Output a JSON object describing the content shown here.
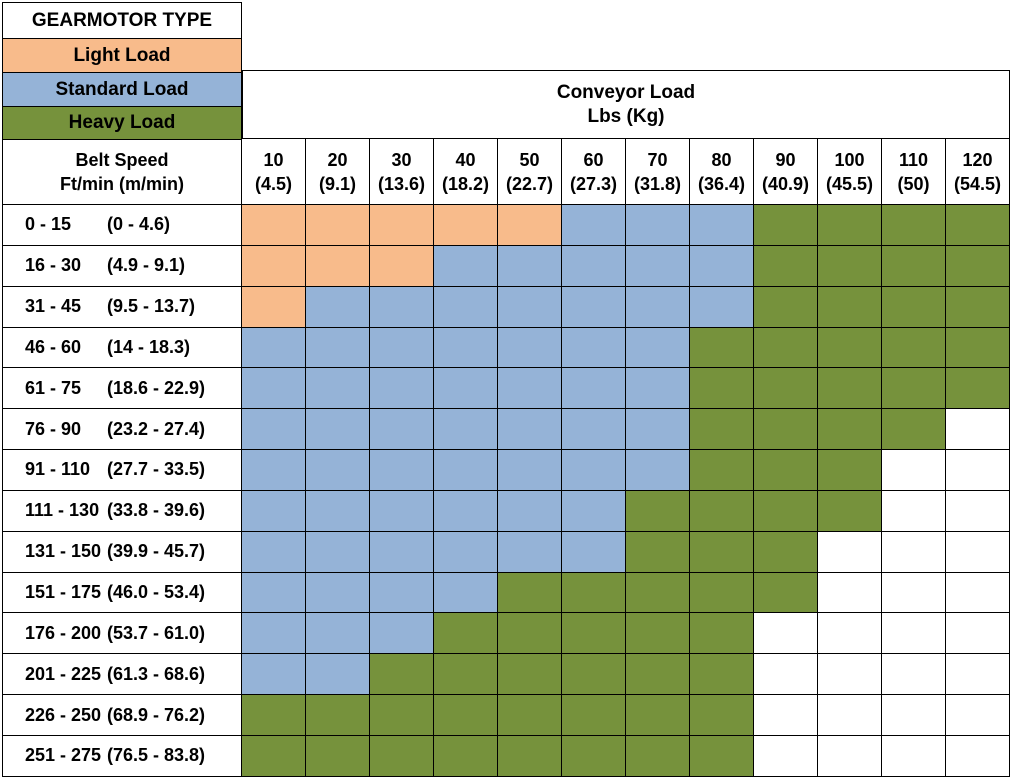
{
  "legend": {
    "title": "GEARMOTOR TYPE",
    "items": [
      {
        "label": "Light Load",
        "color": "#f8bb8b"
      },
      {
        "label": "Standard Load",
        "color": "#95b3d7"
      },
      {
        "label": "Heavy Load",
        "color": "#76923c"
      }
    ]
  },
  "header": {
    "conveyor_line1": "Conveyor Load",
    "conveyor_line2": "Lbs (Kg)",
    "belt_line1": "Belt Speed",
    "belt_line2": "Ft/min (m/min)"
  },
  "load_columns": [
    {
      "lbs": "10",
      "kg": "(4.5)"
    },
    {
      "lbs": "20",
      "kg": "(9.1)"
    },
    {
      "lbs": "30",
      "kg": "(13.6)"
    },
    {
      "lbs": "40",
      "kg": "(18.2)"
    },
    {
      "lbs": "50",
      "kg": "(22.7)"
    },
    {
      "lbs": "60",
      "kg": "(27.3)"
    },
    {
      "lbs": "70",
      "kg": "(31.8)"
    },
    {
      "lbs": "80",
      "kg": "(36.4)"
    },
    {
      "lbs": "90",
      "kg": "(40.9)"
    },
    {
      "lbs": "100",
      "kg": "(45.5)"
    },
    {
      "lbs": "110",
      "kg": "(50)"
    },
    {
      "lbs": "120",
      "kg": "(54.5)"
    }
  ],
  "rows": [
    {
      "ft": "0 - 15",
      "m": "(0 - 4.6)",
      "loads": [
        "L",
        "L",
        "L",
        "L",
        "L",
        "S",
        "S",
        "S",
        "H",
        "H",
        "H",
        "H"
      ]
    },
    {
      "ft": "16 - 30",
      "m": "(4.9 - 9.1)",
      "loads": [
        "L",
        "L",
        "L",
        "S",
        "S",
        "S",
        "S",
        "S",
        "H",
        "H",
        "H",
        "H"
      ]
    },
    {
      "ft": "31 - 45",
      "m": "(9.5 - 13.7)",
      "loads": [
        "L",
        "S",
        "S",
        "S",
        "S",
        "S",
        "S",
        "S",
        "H",
        "H",
        "H",
        "H"
      ]
    },
    {
      "ft": "46 - 60",
      "m": "(14 - 18.3)",
      "loads": [
        "S",
        "S",
        "S",
        "S",
        "S",
        "S",
        "S",
        "H",
        "H",
        "H",
        "H",
        "H"
      ]
    },
    {
      "ft": "61 - 75",
      "m": "(18.6 - 22.9)",
      "loads": [
        "S",
        "S",
        "S",
        "S",
        "S",
        "S",
        "S",
        "H",
        "H",
        "H",
        "H",
        "H"
      ]
    },
    {
      "ft": "76 - 90",
      "m": "(23.2 - 27.4)",
      "loads": [
        "S",
        "S",
        "S",
        "S",
        "S",
        "S",
        "S",
        "H",
        "H",
        "H",
        "H",
        ""
      ]
    },
    {
      "ft": "91 - 110",
      "m": "(27.7 - 33.5)",
      "loads": [
        "S",
        "S",
        "S",
        "S",
        "S",
        "S",
        "S",
        "H",
        "H",
        "H",
        "",
        ""
      ]
    },
    {
      "ft": "111 - 130",
      "m": "(33.8 - 39.6)",
      "loads": [
        "S",
        "S",
        "S",
        "S",
        "S",
        "S",
        "H",
        "H",
        "H",
        "H",
        "",
        ""
      ]
    },
    {
      "ft": "131 - 150",
      "m": "(39.9 - 45.7)",
      "loads": [
        "S",
        "S",
        "S",
        "S",
        "S",
        "S",
        "H",
        "H",
        "H",
        "",
        "",
        ""
      ]
    },
    {
      "ft": "151 - 175",
      "m": "(46.0 - 53.4)",
      "loads": [
        "S",
        "S",
        "S",
        "S",
        "H",
        "H",
        "H",
        "H",
        "H",
        "",
        "",
        ""
      ]
    },
    {
      "ft": "176 - 200",
      "m": "(53.7 - 61.0)",
      "loads": [
        "S",
        "S",
        "S",
        "H",
        "H",
        "H",
        "H",
        "H",
        "",
        "",
        "",
        ""
      ]
    },
    {
      "ft": "201 - 225",
      "m": "(61.3 - 68.6)",
      "loads": [
        "S",
        "S",
        "H",
        "H",
        "H",
        "H",
        "H",
        "H",
        "",
        "",
        "",
        ""
      ]
    },
    {
      "ft": "226 - 250",
      "m": "(68.9 - 76.2)",
      "loads": [
        "H",
        "H",
        "H",
        "H",
        "H",
        "H",
        "H",
        "H",
        "",
        "",
        "",
        ""
      ]
    },
    {
      "ft": "251 - 275",
      "m": "(76.5 - 83.8)",
      "loads": [
        "H",
        "H",
        "H",
        "H",
        "H",
        "H",
        "H",
        "H",
        "",
        "",
        "",
        ""
      ]
    }
  ]
}
